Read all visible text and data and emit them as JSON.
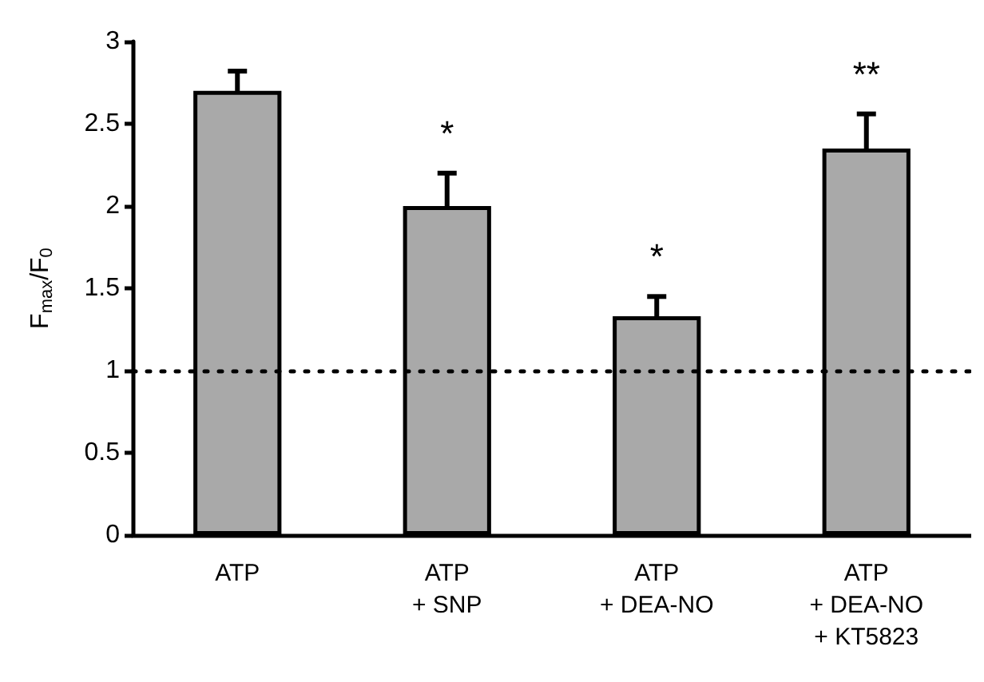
{
  "chart_data": {
    "type": "bar",
    "ylabel": "F$_{max}$/F$_{0}$",
    "categories": [
      "ATP",
      "ATP\n+ SNP",
      "ATP\n+ DEA-NO",
      "ATP\n+ DEA-NO\n+ KT5823"
    ],
    "values": [
      2.7,
      2.0,
      1.33,
      2.35
    ],
    "errors": [
      0.12,
      0.2,
      0.12,
      0.21
    ],
    "value_labels": [
      null,
      "*",
      "*",
      "**"
    ],
    "color": "#a9a9a9",
    "ylim": [
      0,
      3
    ],
    "yticks": [
      0,
      0.5,
      1,
      1.5,
      2,
      2.5,
      3
    ],
    "grid": false,
    "ref_lines": [
      {
        "axis": "y",
        "value": 1,
        "line_style": "dotted",
        "color": "#000000"
      }
    ]
  }
}
